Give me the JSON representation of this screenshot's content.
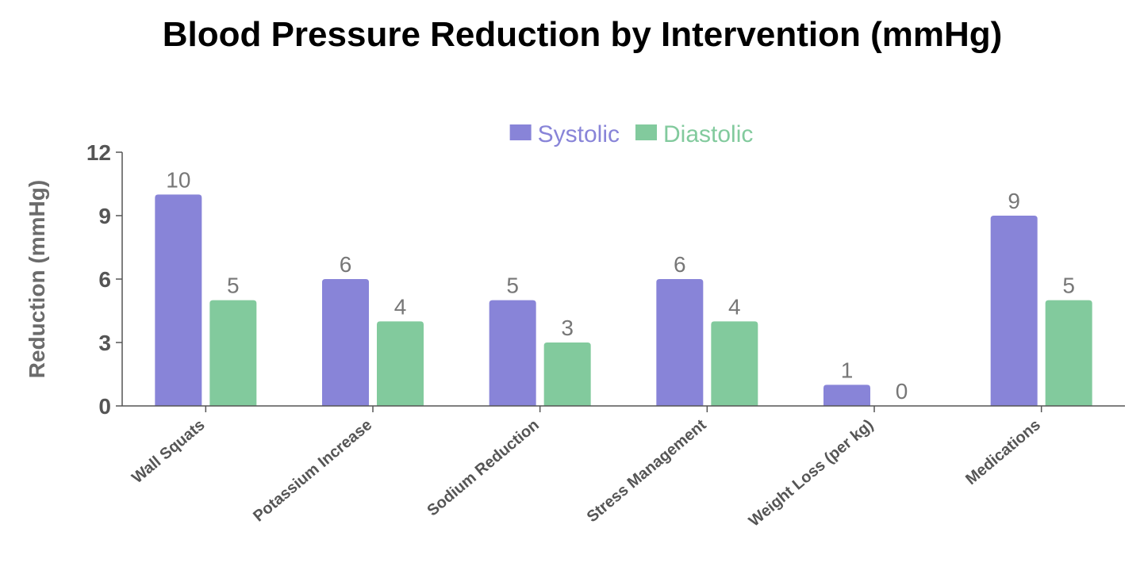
{
  "chart_data": {
    "type": "bar",
    "title": "Blood Pressure Reduction by Intervention (mmHg)",
    "xlabel": "",
    "ylabel": "Reduction (mmHg)",
    "ylim": [
      0,
      12
    ],
    "yticks": [
      0,
      3,
      6,
      9,
      12
    ],
    "grid": false,
    "legend": "top",
    "categories": [
      "Wall Squats",
      "Potassium Increase",
      "Sodium Reduction",
      "Stress Management",
      "Weight Loss (per kg)",
      "Medications"
    ],
    "series": [
      {
        "name": "Systolic",
        "color": "#8884d8",
        "values": [
          10,
          6,
          5,
          6,
          1,
          9
        ]
      },
      {
        "name": "Diastolic",
        "color": "#82ca9d",
        "values": [
          5,
          4,
          3,
          4,
          0,
          5
        ]
      }
    ]
  }
}
